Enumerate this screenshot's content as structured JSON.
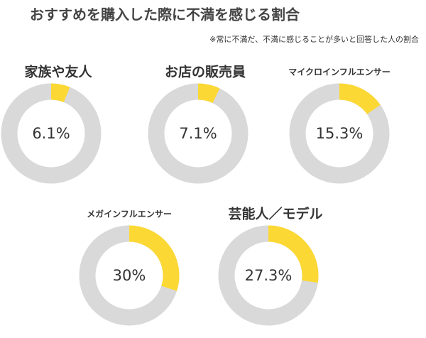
{
  "header": {
    "title": "おすすめを購入した際に不満を感じる割合",
    "subtitle": "※常に不満だ、不満に感じることが多いと回答した人の割合"
  },
  "chart_data": [
    {
      "type": "donut",
      "title": "家族や友人",
      "values": [
        6.1
      ],
      "value_labels": [
        "6.1%"
      ],
      "color": "#fcd835",
      "track_color": "#d9d9d9"
    },
    {
      "type": "donut",
      "title": "お店の販売員",
      "values": [
        7.1
      ],
      "value_labels": [
        "7.1%"
      ],
      "color": "#fcd835",
      "track_color": "#d9d9d9"
    },
    {
      "type": "donut",
      "title": "マイクロインフルエンサー",
      "values": [
        15.3
      ],
      "value_labels": [
        "15.3%"
      ],
      "color": "#fcd835",
      "track_color": "#d9d9d9"
    },
    {
      "type": "donut",
      "title": "メガインフルエンサー",
      "values": [
        30
      ],
      "value_labels": [
        "30%"
      ],
      "color": "#fcd835",
      "track_color": "#d9d9d9"
    },
    {
      "type": "donut",
      "title": "芸能人／モデル",
      "values": [
        27.3
      ],
      "value_labels": [
        "27.3%"
      ],
      "color": "#fcd835",
      "track_color": "#d9d9d9"
    }
  ]
}
